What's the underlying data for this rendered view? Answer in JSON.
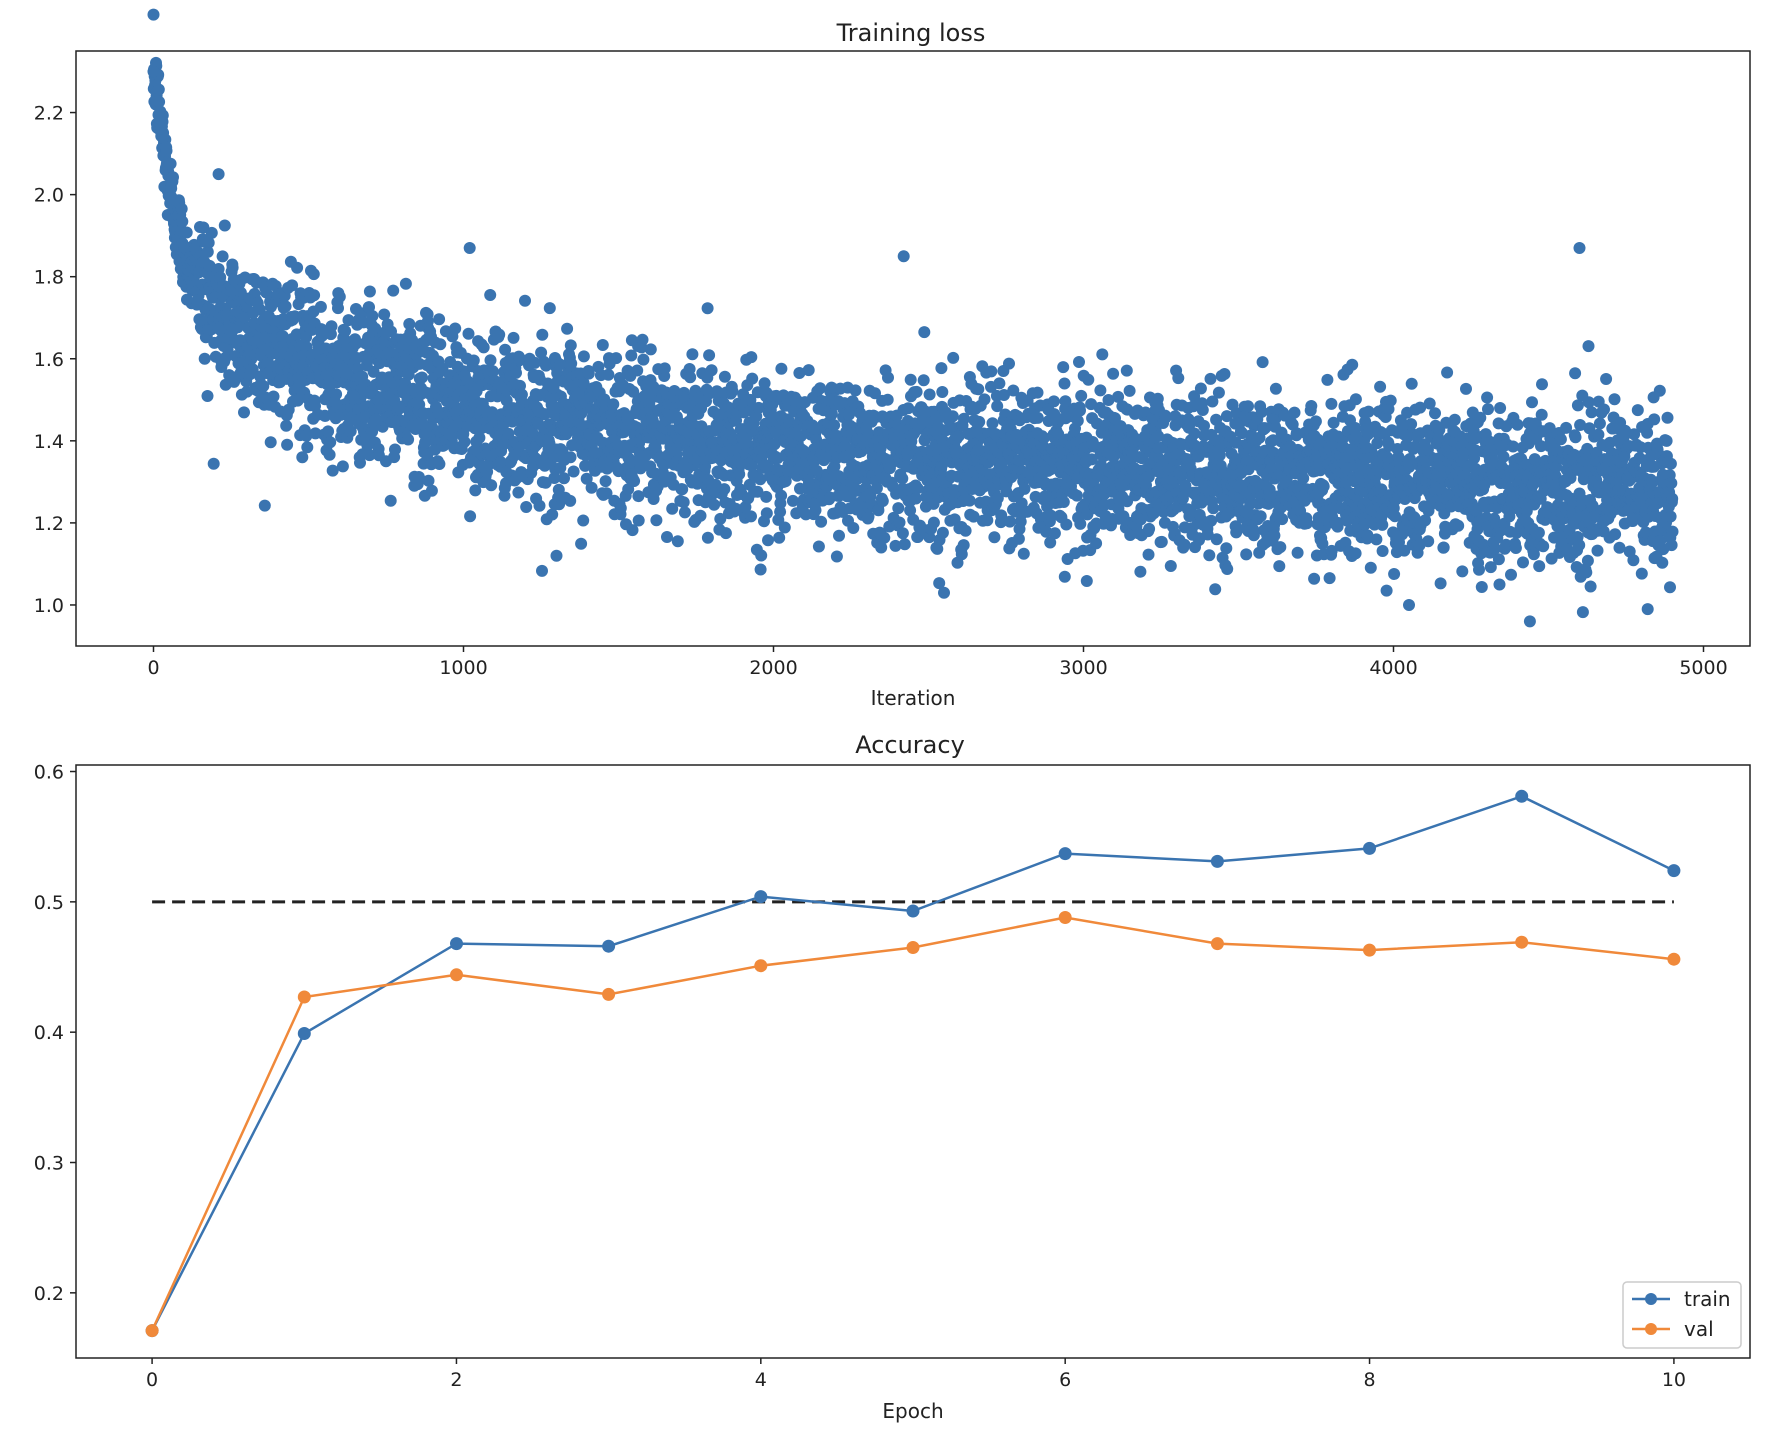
{
  "colors": {
    "train": "#3a74b0",
    "val": "#f0893a",
    "ref": "#222222",
    "scatter": "#3a74b0"
  },
  "chart_data": [
    {
      "type": "scatter",
      "title": "Training loss",
      "xlabel": "Iteration",
      "ylabel": "",
      "xlim": [
        -250,
        5150
      ],
      "ylim": [
        0.9,
        2.35
      ],
      "xticks": [
        0,
        1000,
        2000,
        3000,
        4000,
        5000
      ],
      "yticks": [
        1.0,
        1.2,
        1.4,
        1.6,
        1.8,
        2.0,
        2.2
      ],
      "grid": false,
      "series": [
        {
          "n_points": 4900,
          "x_range": [
            0,
            4900
          ],
          "trend": [
            [
              0,
              2.3
            ],
            [
              50,
              2.02
            ],
            [
              100,
              1.85
            ],
            [
              200,
              1.72
            ],
            [
              400,
              1.62
            ],
            [
              600,
              1.56
            ],
            [
              1000,
              1.48
            ],
            [
              1500,
              1.42
            ],
            [
              2000,
              1.38
            ],
            [
              2500,
              1.36
            ],
            [
              3000,
              1.34
            ],
            [
              3500,
              1.32
            ],
            [
              4000,
              1.31
            ],
            [
              4500,
              1.29
            ],
            [
              4900,
              1.28
            ]
          ],
          "notable_points": [
            [
              0,
              2.3
            ],
            [
              210,
              2.05
            ],
            [
              1020,
              1.87
            ],
            [
              2420,
              1.85
            ],
            [
              4600,
              1.87
            ],
            [
              4440,
              0.96
            ],
            [
              4050,
              1.0
            ],
            [
              4820,
              0.99
            ],
            [
              2550,
              1.03
            ],
            [
              1300,
              1.12
            ]
          ]
        }
      ]
    },
    {
      "type": "line",
      "title": "Accuracy",
      "xlabel": "Epoch",
      "ylabel": "",
      "xlim": [
        -0.5,
        10.5
      ],
      "ylim": [
        0.15,
        0.605
      ],
      "xticks": [
        0,
        2,
        4,
        6,
        8,
        10
      ],
      "yticks": [
        0.2,
        0.3,
        0.4,
        0.5,
        0.6
      ],
      "grid": false,
      "legend_position": "bottom-right",
      "x": [
        0,
        1,
        2,
        3,
        4,
        5,
        6,
        7,
        8,
        9,
        10
      ],
      "series": [
        {
          "name": "train",
          "values": [
            0.171,
            0.399,
            0.468,
            0.466,
            0.504,
            0.493,
            0.537,
            0.531,
            0.541,
            0.581,
            0.524
          ]
        },
        {
          "name": "val",
          "values": [
            0.171,
            0.427,
            0.444,
            0.429,
            0.451,
            0.465,
            0.488,
            0.468,
            0.463,
            0.469,
            0.456
          ]
        }
      ],
      "reference_line": {
        "y": 0.5,
        "x_range": [
          0,
          10
        ],
        "style": "dashed"
      }
    }
  ]
}
